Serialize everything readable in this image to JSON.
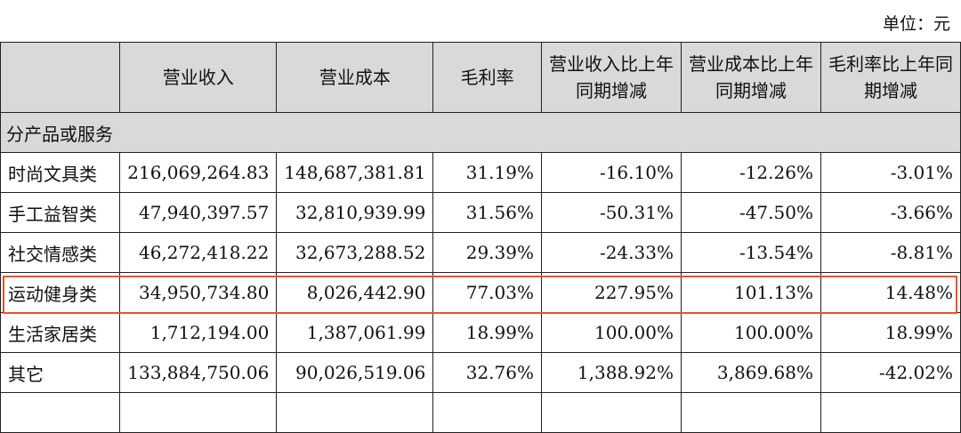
{
  "unit_label": "单位：元",
  "headers": {
    "blank": "",
    "revenue": "营业收入",
    "cost": "营业成本",
    "margin": "毛利率",
    "revenue_yoy_1": "营业收入比上年",
    "revenue_yoy_2": "同期增减",
    "cost_yoy_1": "营业成本比上年",
    "cost_yoy_2": "同期增减",
    "margin_yoy_1": "毛利率比上年同",
    "margin_yoy_2": "期增减"
  },
  "section_label": "分产品或服务",
  "rows": [
    {
      "name": "时尚文具类",
      "revenue": "216,069,264.83",
      "cost": "148,687,381.81",
      "margin": "31.19%",
      "revenue_yoy": "-16.10%",
      "cost_yoy": "-12.26%",
      "margin_yoy": "-3.01%"
    },
    {
      "name": "手工益智类",
      "revenue": "47,940,397.57",
      "cost": "32,810,939.99",
      "margin": "31.56%",
      "revenue_yoy": "-50.31%",
      "cost_yoy": "-47.50%",
      "margin_yoy": "-3.66%"
    },
    {
      "name": "社交情感类",
      "revenue": "46,272,418.22",
      "cost": "32,673,288.52",
      "margin": "29.39%",
      "revenue_yoy": "-24.33%",
      "cost_yoy": "-13.54%",
      "margin_yoy": "-8.81%"
    },
    {
      "name": "运动健身类",
      "revenue": "34,950,734.80",
      "cost": "8,026,442.90",
      "margin": "77.03%",
      "revenue_yoy": "227.95%",
      "cost_yoy": "101.13%",
      "margin_yoy": "14.48%"
    },
    {
      "name": "生活家居类",
      "revenue": "1,712,194.00",
      "cost": "1,387,061.99",
      "margin": "18.99%",
      "revenue_yoy": "100.00%",
      "cost_yoy": "100.00%",
      "margin_yoy": "18.99%"
    },
    {
      "name": "其它",
      "revenue": "133,884,750.06",
      "cost": "90,026,519.06",
      "margin": "32.76%",
      "revenue_yoy": "1,388.92%",
      "cost_yoy": "3,869.68%",
      "margin_yoy": "-42.02%"
    }
  ],
  "highlight": {
    "row_name": "运动健身类",
    "color": "#e8522a"
  },
  "colors": {
    "header_bg": "#d9d9d9",
    "border": "#222222"
  }
}
